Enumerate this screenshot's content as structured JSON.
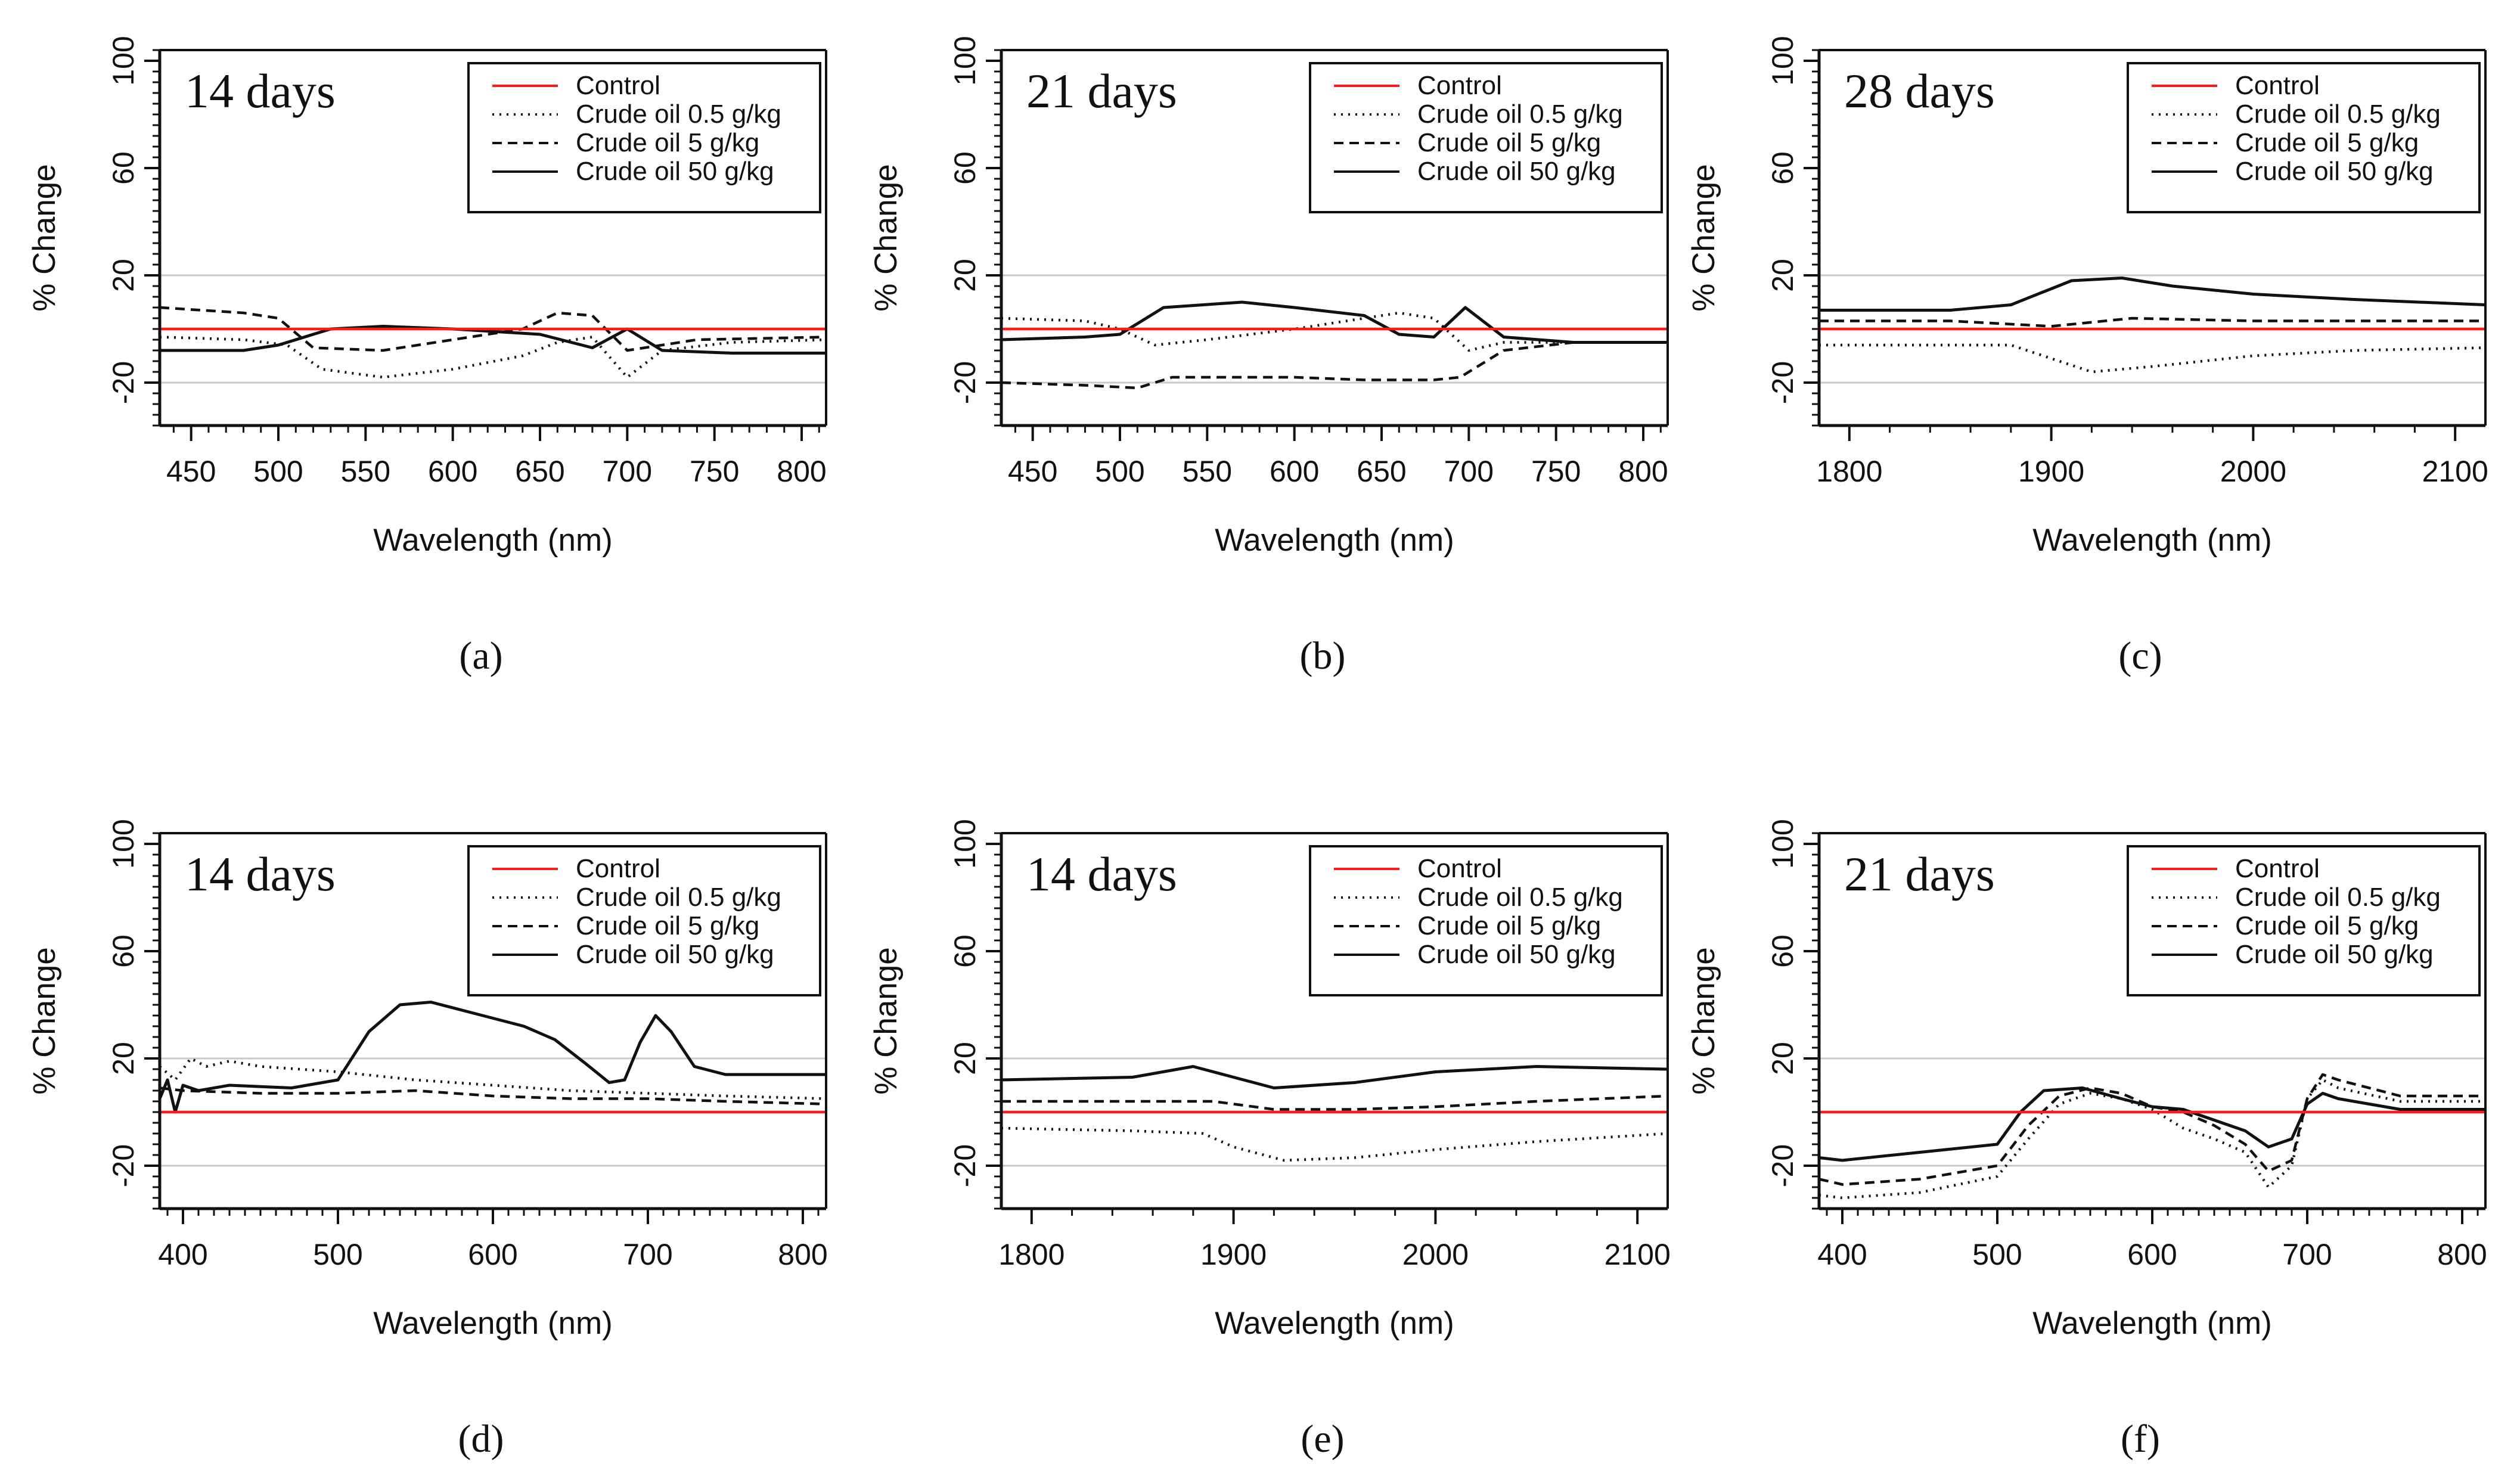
{
  "figure": {
    "y_axis_label": "% Change",
    "x_axis_label": "Wavelength (nm)"
  },
  "legend_labels": [
    "Control",
    "Crude oil 0.5 g/kg",
    "Crude oil 5 g/kg",
    "Crude oil 50 g/kg"
  ],
  "series_styles": {
    "control_color": "#ff1a1a",
    "line_color": "#111111",
    "styles": [
      "solid-red",
      "dotted",
      "dashed",
      "solid"
    ]
  },
  "chart_data": [
    {
      "panel": "(a)",
      "type": "line",
      "title": "14 days",
      "xlabel": "Wavelength (nm)",
      "ylabel": "% Change",
      "xlim": [
        432,
        814
      ],
      "ylim": [
        -36,
        104
      ],
      "xticks": [
        450,
        500,
        550,
        600,
        650,
        700,
        750,
        800
      ],
      "yticks": [
        -20,
        20,
        60,
        100
      ],
      "minor_xstep": 10,
      "minor_ystep": 4,
      "gridlines": [
        20,
        -20
      ],
      "series": [
        {
          "name": "Control",
          "x": [
            432,
            814
          ],
          "y": [
            0,
            0
          ]
        },
        {
          "name": "Crude oil 0.5 g/kg",
          "x": [
            432,
            480,
            505,
            525,
            560,
            600,
            640,
            660,
            680,
            700,
            720,
            760,
            814
          ],
          "y": [
            -3,
            -4,
            -6,
            -15,
            -18,
            -15,
            -10,
            -5,
            -3,
            -18,
            -8,
            -5,
            -4
          ]
        },
        {
          "name": "Crude oil 5 g/kg",
          "x": [
            432,
            480,
            500,
            520,
            560,
            600,
            640,
            660,
            680,
            700,
            740,
            814
          ],
          "y": [
            8,
            6,
            4,
            -7,
            -8,
            -4,
            0,
            6,
            5,
            -8,
            -4,
            -3
          ]
        },
        {
          "name": "Crude oil 50 g/kg",
          "x": [
            432,
            480,
            500,
            530,
            560,
            600,
            650,
            680,
            700,
            720,
            760,
            814
          ],
          "y": [
            -8,
            -8,
            -6,
            0,
            1,
            0,
            -2,
            -7,
            0,
            -8,
            -9,
            -9
          ]
        }
      ]
    },
    {
      "panel": "(b)",
      "type": "line",
      "title": "21 days",
      "xlabel": "Wavelength (nm)",
      "ylabel": "% Change",
      "xlim": [
        432,
        814
      ],
      "ylim": [
        -36,
        104
      ],
      "xticks": [
        450,
        500,
        550,
        600,
        650,
        700,
        750,
        800
      ],
      "yticks": [
        -20,
        20,
        60,
        100
      ],
      "minor_xstep": 10,
      "minor_ystep": 4,
      "gridlines": [
        20,
        -20
      ],
      "series": [
        {
          "name": "Control",
          "x": [
            432,
            814
          ],
          "y": [
            0,
            0
          ]
        },
        {
          "name": "Crude oil 0.5 g/kg",
          "x": [
            432,
            480,
            500,
            520,
            550,
            600,
            640,
            660,
            680,
            700,
            720,
            760,
            814
          ],
          "y": [
            4,
            3,
            0,
            -6,
            -4,
            0,
            4,
            6,
            4,
            -8,
            -5,
            -5,
            -5
          ]
        },
        {
          "name": "Crude oil 5 g/kg",
          "x": [
            432,
            480,
            510,
            530,
            600,
            640,
            680,
            695,
            720,
            760,
            814
          ],
          "y": [
            -20,
            -21,
            -22,
            -18,
            -18,
            -19,
            -19,
            -18,
            -8,
            -5,
            -5
          ]
        },
        {
          "name": "Crude oil 50 g/kg",
          "x": [
            432,
            480,
            500,
            525,
            570,
            600,
            640,
            660,
            680,
            698,
            720,
            760,
            814
          ],
          "y": [
            -4,
            -3,
            -2,
            8,
            10,
            8,
            5,
            -2,
            -3,
            8,
            -3,
            -5,
            -5
          ]
        }
      ]
    },
    {
      "panel": "(c)",
      "type": "line",
      "title": "28 days",
      "xlabel": "Wavelength (nm)",
      "ylabel": "% Change",
      "xlim": [
        1785,
        2115
      ],
      "ylim": [
        -36,
        104
      ],
      "xticks": [
        1800,
        1900,
        2000,
        2100
      ],
      "yticks": [
        -20,
        20,
        60,
        100
      ],
      "minor_xstep": 20,
      "minor_ystep": 4,
      "gridlines": [
        20,
        -20
      ],
      "series": [
        {
          "name": "Control",
          "x": [
            1785,
            2115
          ],
          "y": [
            0,
            0
          ]
        },
        {
          "name": "Crude oil 0.5 g/kg",
          "x": [
            1785,
            1850,
            1880,
            1920,
            1950,
            2000,
            2050,
            2115
          ],
          "y": [
            -6,
            -6,
            -6,
            -16,
            -14,
            -10,
            -8,
            -7
          ]
        },
        {
          "name": "Crude oil 5 g/kg",
          "x": [
            1785,
            1850,
            1900,
            1940,
            2000,
            2050,
            2115
          ],
          "y": [
            3,
            3,
            1,
            4,
            3,
            3,
            3
          ]
        },
        {
          "name": "Crude oil 50 g/kg",
          "x": [
            1785,
            1850,
            1880,
            1910,
            1935,
            1960,
            2000,
            2050,
            2115
          ],
          "y": [
            7,
            7,
            9,
            18,
            19,
            16,
            13,
            11,
            9
          ]
        }
      ]
    },
    {
      "panel": "(d)",
      "type": "line",
      "title": "14 days",
      "xlabel": "Wavelength (nm)",
      "ylabel": "% Change",
      "xlim": [
        385,
        815
      ],
      "ylim": [
        -36,
        104
      ],
      "xticks": [
        400,
        500,
        600,
        700,
        800
      ],
      "yticks": [
        -20,
        20,
        60,
        100
      ],
      "minor_xstep": 10,
      "minor_ystep": 4,
      "gridlines": [
        20,
        -20
      ],
      "series": [
        {
          "name": "Control",
          "x": [
            385,
            815
          ],
          "y": [
            0,
            0
          ]
        },
        {
          "name": "Crude oil 0.5 g/kg",
          "x": [
            385,
            395,
            405,
            415,
            430,
            450,
            500,
            550,
            600,
            650,
            700,
            750,
            815
          ],
          "y": [
            17,
            12,
            20,
            17,
            19,
            17,
            15,
            12,
            10,
            8,
            7,
            6,
            5
          ]
        },
        {
          "name": "Crude oil 5 g/kg",
          "x": [
            385,
            400,
            450,
            500,
            550,
            600,
            650,
            700,
            750,
            815
          ],
          "y": [
            9,
            8,
            7,
            7,
            8,
            6,
            5,
            5,
            4,
            3
          ]
        },
        {
          "name": "Crude oil 50 g/kg",
          "x": [
            385,
            390,
            395,
            400,
            410,
            430,
            470,
            500,
            520,
            540,
            560,
            580,
            600,
            620,
            640,
            660,
            675,
            685,
            695,
            705,
            715,
            730,
            750,
            815
          ],
          "y": [
            5,
            12,
            0,
            10,
            8,
            10,
            9,
            12,
            30,
            40,
            41,
            38,
            35,
            32,
            27,
            18,
            11,
            12,
            26,
            36,
            30,
            17,
            14,
            14
          ]
        }
      ]
    },
    {
      "panel": "(e)",
      "type": "line",
      "title": "14 days",
      "xlabel": "Wavelength (nm)",
      "ylabel": "% Change",
      "xlim": [
        1785,
        2115
      ],
      "ylim": [
        -36,
        104
      ],
      "xticks": [
        1800,
        1900,
        2000,
        2100
      ],
      "yticks": [
        -20,
        20,
        60,
        100
      ],
      "minor_xstep": 20,
      "minor_ystep": 4,
      "gridlines": [
        20,
        -20
      ],
      "series": [
        {
          "name": "Control",
          "x": [
            1785,
            2115
          ],
          "y": [
            0,
            0
          ]
        },
        {
          "name": "Crude oil 0.5 g/kg",
          "x": [
            1785,
            1850,
            1885,
            1900,
            1925,
            1960,
            2000,
            2050,
            2115
          ],
          "y": [
            -6,
            -7,
            -8,
            -13,
            -18,
            -17,
            -14,
            -11,
            -8
          ]
        },
        {
          "name": "Crude oil 5 g/kg",
          "x": [
            1785,
            1850,
            1890,
            1920,
            1960,
            2000,
            2050,
            2115
          ],
          "y": [
            4,
            4,
            4,
            1,
            1,
            2,
            4,
            6
          ]
        },
        {
          "name": "Crude oil 50 g/kg",
          "x": [
            1785,
            1850,
            1880,
            1900,
            1920,
            1960,
            2000,
            2050,
            2115
          ],
          "y": [
            12,
            13,
            17,
            13,
            9,
            11,
            15,
            17,
            16
          ]
        }
      ]
    },
    {
      "panel": "(f)",
      "type": "line",
      "title": "21 days",
      "xlabel": "Wavelength (nm)",
      "ylabel": "% Change",
      "xlim": [
        385,
        815
      ],
      "ylim": [
        -36,
        104
      ],
      "xticks": [
        400,
        500,
        600,
        700,
        800
      ],
      "yticks": [
        -20,
        20,
        60,
        100
      ],
      "minor_xstep": 10,
      "minor_ystep": 4,
      "gridlines": [
        20,
        -20
      ],
      "series": [
        {
          "name": "Control",
          "x": [
            385,
            815
          ],
          "y": [
            0,
            0
          ]
        },
        {
          "name": "Crude oil 0.5 g/kg",
          "x": [
            385,
            400,
            450,
            500,
            520,
            540,
            560,
            580,
            600,
            620,
            640,
            660,
            675,
            690,
            700,
            710,
            720,
            760,
            815
          ],
          "y": [
            -31,
            -32,
            -30,
            -24,
            -10,
            3,
            7,
            5,
            1,
            -6,
            -10,
            -15,
            -28,
            -20,
            5,
            12,
            9,
            4,
            4
          ]
        },
        {
          "name": "Crude oil 5 g/kg",
          "x": [
            385,
            400,
            450,
            500,
            520,
            540,
            560,
            580,
            600,
            620,
            640,
            660,
            675,
            690,
            700,
            710,
            720,
            760,
            815
          ],
          "y": [
            -25,
            -27,
            -25,
            -20,
            -5,
            6,
            9,
            7,
            2,
            0,
            -5,
            -12,
            -22,
            -18,
            5,
            14,
            12,
            6,
            6
          ]
        },
        {
          "name": "Crude oil 50 g/kg",
          "x": [
            385,
            400,
            450,
            500,
            515,
            530,
            555,
            580,
            600,
            620,
            640,
            660,
            675,
            690,
            700,
            710,
            720,
            760,
            815
          ],
          "y": [
            -17,
            -18,
            -15,
            -12,
            0,
            8,
            9,
            5,
            2,
            1,
            -3,
            -7,
            -13,
            -10,
            3,
            7,
            5,
            1,
            1
          ]
        }
      ]
    }
  ]
}
